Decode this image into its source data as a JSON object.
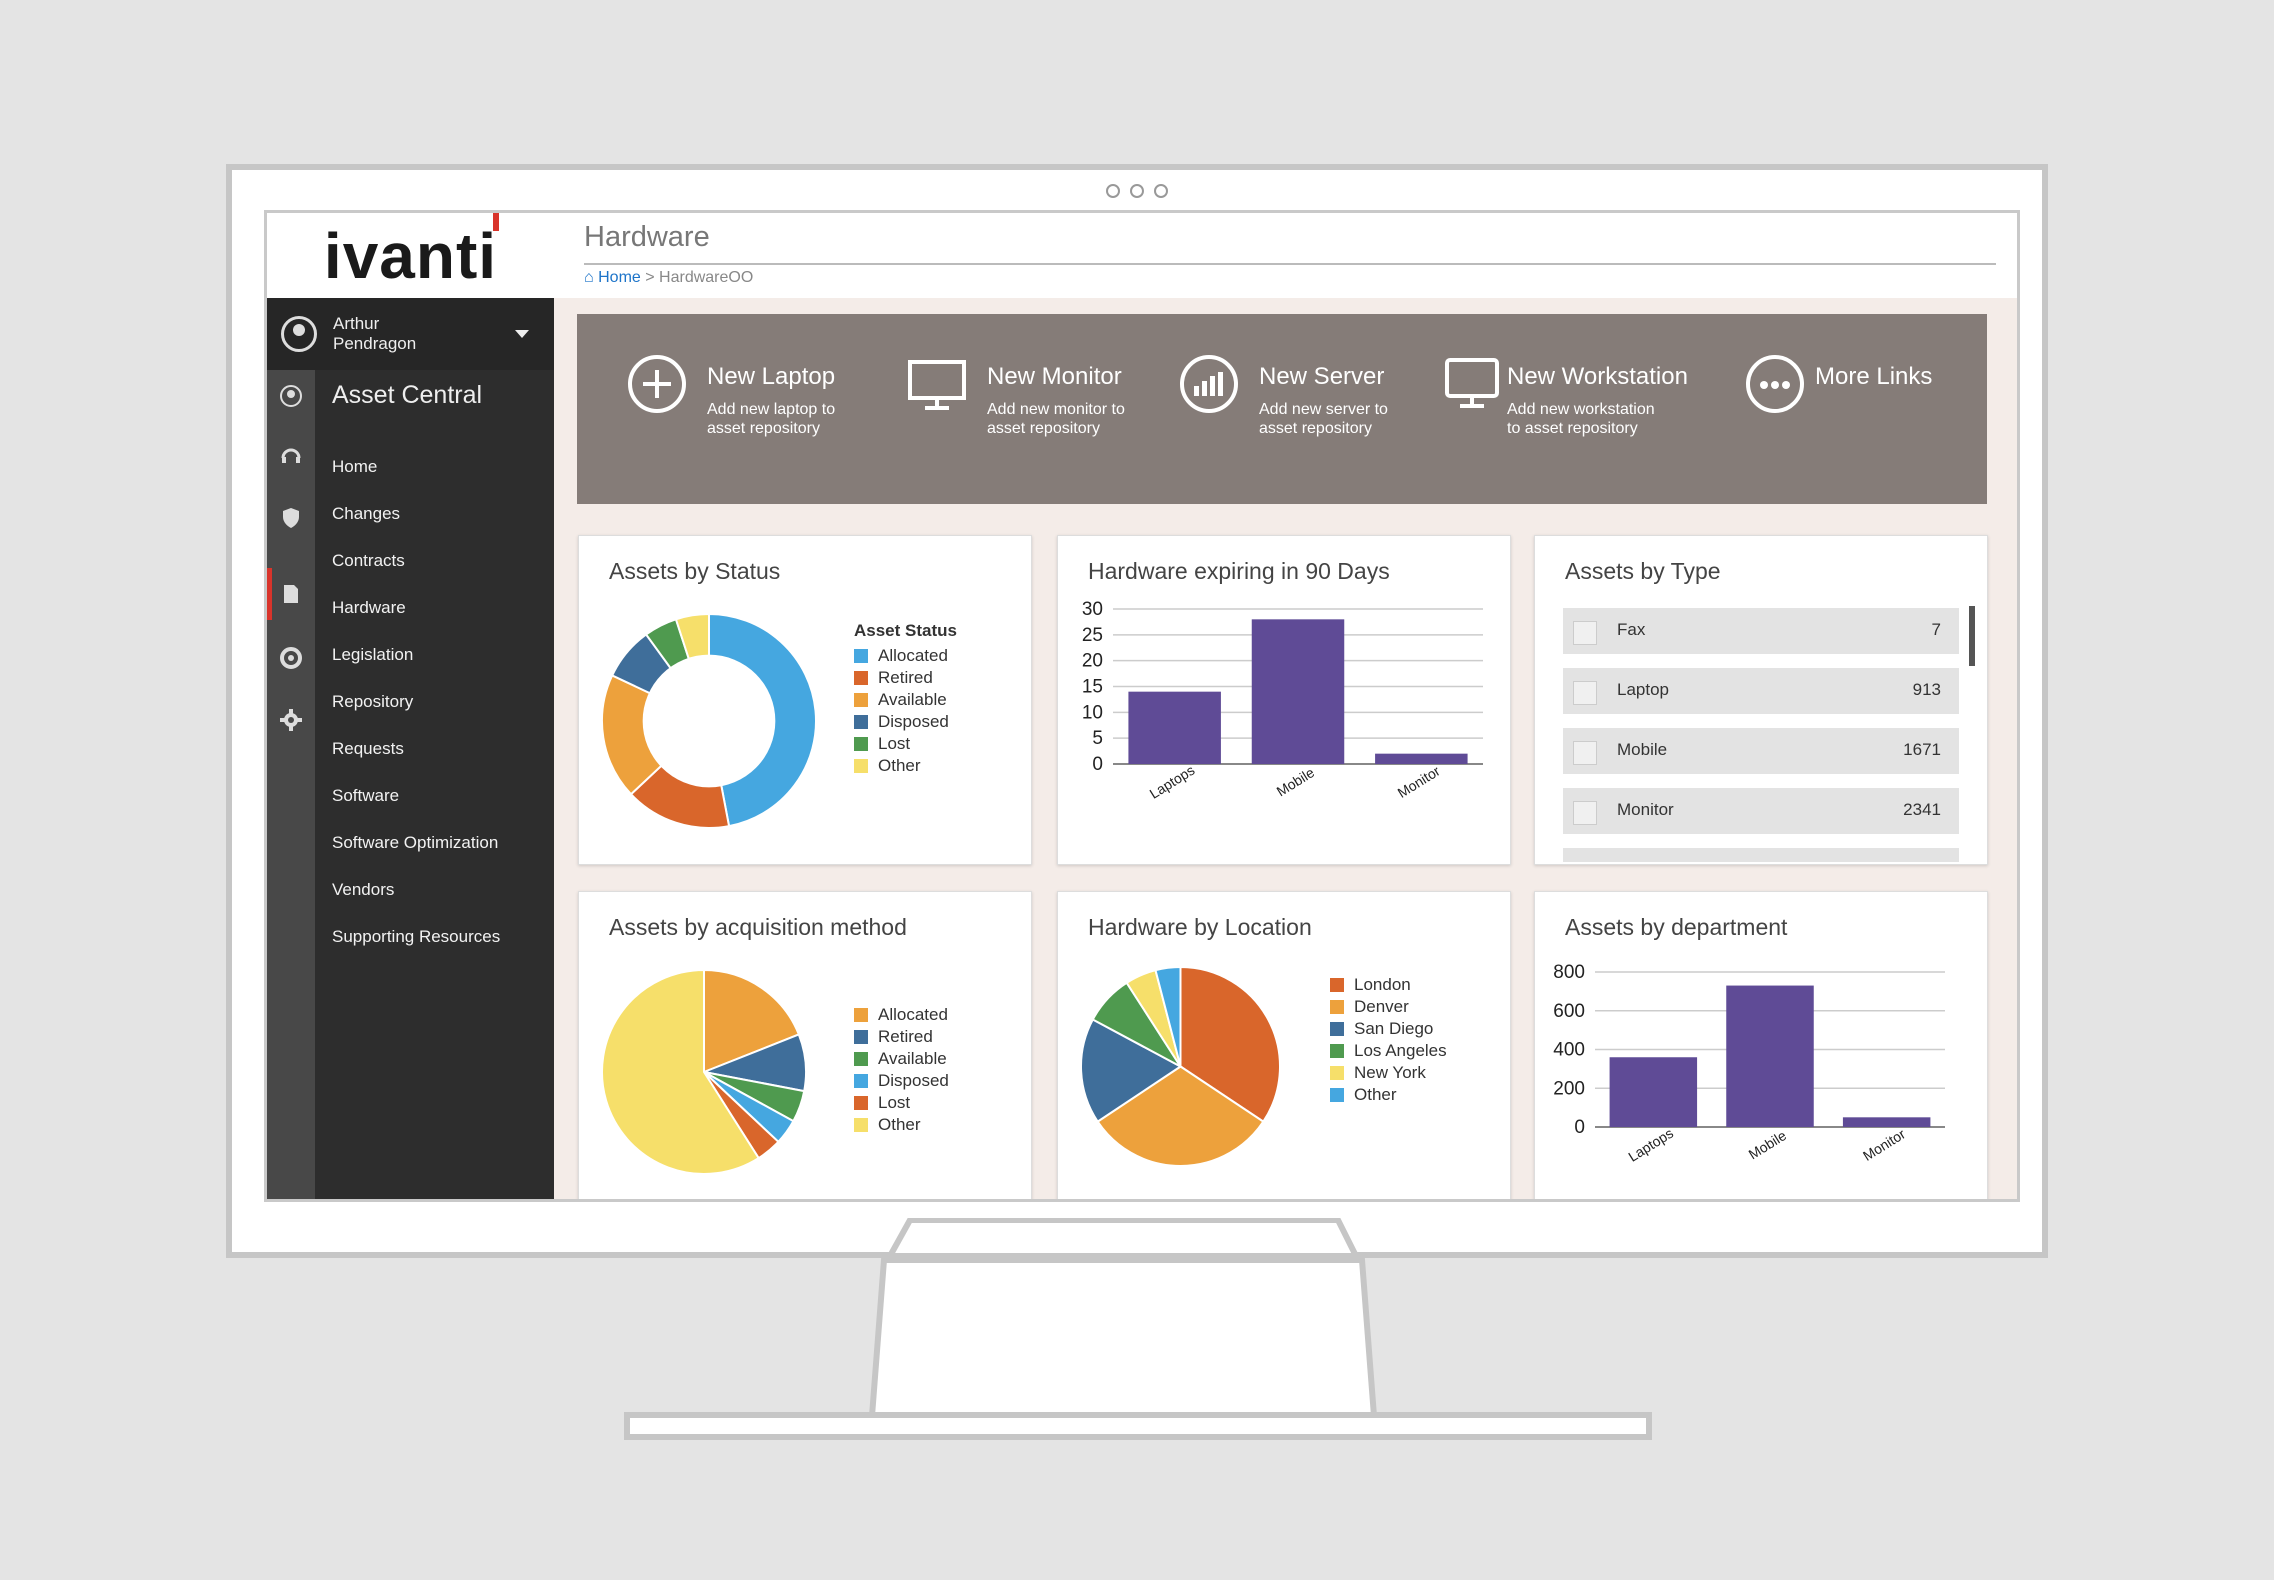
{
  "app": {
    "logo": "ivanti",
    "page_title": "Hardware",
    "module": "Asset Central"
  },
  "breadcrumb": {
    "home": "Home",
    "separator": ">",
    "current": "HardwareOO"
  },
  "user": {
    "name_line1": "Arthur",
    "name_line2": "Pendragon"
  },
  "sidebar": {
    "items": [
      {
        "label": "Home"
      },
      {
        "label": "Changes"
      },
      {
        "label": "Contracts"
      },
      {
        "label": "Hardware"
      },
      {
        "label": "Legislation"
      },
      {
        "label": "Repository"
      },
      {
        "label": "Requests"
      },
      {
        "label": "Software"
      },
      {
        "label": "Software Optimization"
      },
      {
        "label": "Vendors"
      },
      {
        "label": "Supporting Resources"
      }
    ]
  },
  "actions": [
    {
      "title": "New Laptop",
      "desc": "Add new laptop to asset repository",
      "icon": "plus-circle-icon"
    },
    {
      "title": "New Monitor",
      "desc": "Add new monitor to asset repository",
      "icon": "monitor-icon"
    },
    {
      "title": "New Server",
      "desc": "Add new server to asset repository",
      "icon": "server-icon"
    },
    {
      "title": "New Workstation",
      "desc": "Add new workstation to asset repository",
      "icon": "workstation-icon"
    },
    {
      "title": "More Links",
      "desc": "",
      "icon": "more-icon"
    }
  ],
  "colors": {
    "orange": "#d9662b",
    "amber": "#eda13c",
    "blue": "#3f6e9a",
    "green": "#4f9a4f",
    "sky": "#45a7e0",
    "yellow": "#f6df6a",
    "purple": "#5f4b96"
  },
  "assets_by_type": {
    "title": "Assets by Type",
    "rows": [
      {
        "name": "Fax",
        "value": "7"
      },
      {
        "name": "Laptop",
        "value": "913"
      },
      {
        "name": "Mobile",
        "value": "1671"
      },
      {
        "name": "Monitor",
        "value": "2341"
      }
    ]
  },
  "chart_data": [
    {
      "type": "pie",
      "title": "Assets by Status",
      "donut": true,
      "legend_title": "Asset Status",
      "labels": [
        "Allocated",
        "Retired",
        "Available",
        "Disposed",
        "Lost",
        "Other"
      ],
      "colors": [
        "#45a7e0",
        "#d9662b",
        "#eda13c",
        "#3f6e9a",
        "#4f9a4f",
        "#f6df6a"
      ],
      "values": [
        47,
        16,
        19,
        8,
        5,
        5
      ],
      "legend_position": "right"
    },
    {
      "type": "bar",
      "title": "Hardware expiring in 90 Days",
      "categories": [
        "Laptops",
        "Mobile",
        "Monitor"
      ],
      "values": [
        14,
        28,
        2
      ],
      "ylim": [
        0,
        30
      ],
      "yticks": [
        0,
        5,
        10,
        15,
        20,
        25,
        30
      ],
      "color": "#5f4b96",
      "grid": true
    },
    {
      "type": "pie",
      "title": "Assets by acquisition method",
      "labels": [
        "Allocated",
        "Retired",
        "Available",
        "Disposed",
        "Lost",
        "Other"
      ],
      "colors": [
        "#eda13c",
        "#3f6e9a",
        "#4f9a4f",
        "#45a7e0",
        "#d9662b",
        "#f6df6a"
      ],
      "values": [
        19,
        9,
        5,
        4,
        4,
        59
      ],
      "legend_position": "right"
    },
    {
      "type": "pie",
      "title": "Hardware by Location",
      "labels": [
        "London",
        "Denver",
        "San Diego",
        "Los Angeles",
        "New York",
        "Other"
      ],
      "colors": [
        "#d9662b",
        "#eda13c",
        "#3f6e9a",
        "#4f9a4f",
        "#f6df6a",
        "#45a7e0"
      ],
      "values": [
        34,
        31,
        17,
        8,
        5,
        4
      ],
      "legend_position": "right"
    },
    {
      "type": "bar",
      "title": "Assets by department",
      "categories": [
        "Laptops",
        "Mobile",
        "Monitor"
      ],
      "values": [
        360,
        730,
        50
      ],
      "ylim": [
        0,
        800
      ],
      "yticks": [
        0,
        200,
        400,
        600,
        800
      ],
      "color": "#5f4b96",
      "grid": true
    }
  ]
}
